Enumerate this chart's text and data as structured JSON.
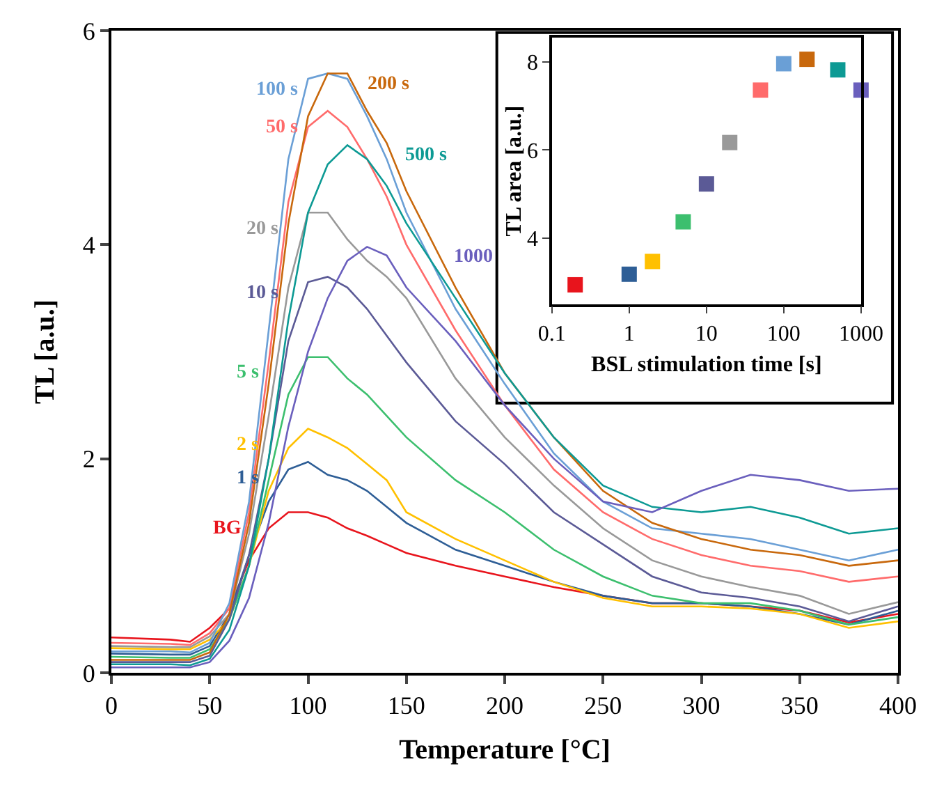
{
  "chart_data": [
    {
      "type": "line",
      "xlabel": "Temperature [°C]",
      "ylabel": "TL [a.u.]",
      "xlim": [
        0,
        400
      ],
      "ylim": [
        0,
        6
      ],
      "xticks": [
        0,
        50,
        100,
        150,
        200,
        250,
        300,
        350,
        400
      ],
      "yticks": [
        0,
        2,
        4,
        6
      ],
      "grid": false,
      "marker": "none",
      "line_style": "solid",
      "x": [
        0,
        30,
        40,
        50,
        60,
        70,
        80,
        90,
        100,
        110,
        120,
        130,
        140,
        150,
        175,
        200,
        225,
        250,
        275,
        300,
        325,
        350,
        375,
        400
      ],
      "series": [
        {
          "name": "BG",
          "color": "#e8141c",
          "values": [
            0.33,
            0.31,
            0.29,
            0.42,
            0.6,
            1.05,
            1.35,
            1.5,
            1.5,
            1.45,
            1.35,
            1.28,
            1.2,
            1.12,
            1.0,
            0.9,
            0.8,
            0.72,
            0.65,
            0.65,
            0.62,
            0.58,
            0.47,
            0.55
          ]
        },
        {
          "name": "1 s",
          "color": "#2e5e96",
          "values": [
            0.18,
            0.17,
            0.17,
            0.25,
            0.55,
            1.1,
            1.6,
            1.9,
            1.97,
            1.85,
            1.8,
            1.7,
            1.55,
            1.4,
            1.15,
            1.0,
            0.85,
            0.72,
            0.65,
            0.65,
            0.62,
            0.55,
            0.45,
            0.58
          ]
        },
        {
          "name": "2 s",
          "color": "#ffc000",
          "values": [
            0.23,
            0.22,
            0.22,
            0.31,
            0.5,
            1.0,
            1.7,
            2.1,
            2.28,
            2.2,
            2.1,
            1.95,
            1.8,
            1.5,
            1.25,
            1.05,
            0.85,
            0.7,
            0.62,
            0.62,
            0.6,
            0.55,
            0.42,
            0.48
          ]
        },
        {
          "name": "5 s",
          "color": "#3cbf6e",
          "values": [
            0.15,
            0.14,
            0.14,
            0.22,
            0.5,
            1.0,
            1.8,
            2.6,
            2.95,
            2.95,
            2.75,
            2.6,
            2.4,
            2.2,
            1.8,
            1.5,
            1.15,
            0.9,
            0.72,
            0.65,
            0.65,
            0.58,
            0.45,
            0.52
          ]
        },
        {
          "name": "10 s",
          "color": "#5b5a96",
          "values": [
            0.1,
            0.1,
            0.1,
            0.16,
            0.5,
            1.1,
            2.0,
            3.1,
            3.65,
            3.7,
            3.6,
            3.4,
            3.15,
            2.9,
            2.35,
            1.95,
            1.5,
            1.2,
            0.9,
            0.75,
            0.7,
            0.62,
            0.48,
            0.62
          ]
        },
        {
          "name": "20 s",
          "color": "#999999",
          "values": [
            0.25,
            0.24,
            0.24,
            0.34,
            0.55,
            1.3,
            2.4,
            3.6,
            4.3,
            4.3,
            4.05,
            3.85,
            3.7,
            3.5,
            2.75,
            2.2,
            1.75,
            1.35,
            1.05,
            0.9,
            0.8,
            0.72,
            0.55,
            0.66
          ]
        },
        {
          "name": "50 s",
          "color": "#ff6b6b",
          "values": [
            0.28,
            0.27,
            0.26,
            0.37,
            0.6,
            1.5,
            2.9,
            4.4,
            5.1,
            5.25,
            5.1,
            4.8,
            4.45,
            4.0,
            3.2,
            2.5,
            1.9,
            1.5,
            1.25,
            1.1,
            1.0,
            0.95,
            0.85,
            0.9
          ]
        },
        {
          "name": "100 s",
          "color": "#6a9fd6",
          "values": [
            0.2,
            0.2,
            0.19,
            0.28,
            0.65,
            1.6,
            3.2,
            4.8,
            5.55,
            5.6,
            5.55,
            5.2,
            4.8,
            4.3,
            3.4,
            2.7,
            2.05,
            1.6,
            1.35,
            1.3,
            1.25,
            1.15,
            1.05,
            1.15
          ]
        },
        {
          "name": "200 s",
          "color": "#c8680c",
          "values": [
            0.12,
            0.12,
            0.12,
            0.19,
            0.55,
            1.4,
            2.7,
            4.2,
            5.2,
            5.6,
            5.6,
            5.25,
            4.95,
            4.5,
            3.6,
            2.8,
            2.2,
            1.7,
            1.4,
            1.25,
            1.15,
            1.1,
            1.0,
            1.05
          ]
        },
        {
          "name": "500 s",
          "color": "#0d9a94",
          "values": [
            0.08,
            0.08,
            0.07,
            0.13,
            0.4,
            1.0,
            2.0,
            3.3,
            4.3,
            4.75,
            4.93,
            4.8,
            4.55,
            4.2,
            3.5,
            2.8,
            2.2,
            1.75,
            1.55,
            1.5,
            1.55,
            1.45,
            1.3,
            1.35
          ]
        },
        {
          "name": "1000",
          "color": "#6a5fbd",
          "values": [
            0.05,
            0.05,
            0.05,
            0.1,
            0.3,
            0.7,
            1.4,
            2.3,
            3.0,
            3.5,
            3.85,
            3.98,
            3.9,
            3.6,
            3.1,
            2.5,
            2.0,
            1.6,
            1.5,
            1.7,
            1.85,
            1.8,
            1.7,
            1.72
          ]
        }
      ]
    },
    {
      "type": "scatter",
      "xlabel": "BSL stimulation time [s]",
      "ylabel": "TL area [a.u.]",
      "log": "x",
      "xlim": [
        0.1,
        1000
      ],
      "ylim": [
        2.5,
        8.55
      ],
      "xticks": [
        0.1,
        1,
        10,
        100,
        1000
      ],
      "yticks": [
        4,
        6,
        8
      ],
      "grid": false,
      "marker": "square",
      "x": [
        0.2,
        1,
        2,
        5,
        10,
        20,
        50,
        100,
        200,
        500,
        1000
      ],
      "values": [
        2.94,
        3.18,
        3.47,
        4.37,
        5.23,
        6.17,
        7.36,
        7.96,
        8.06,
        7.82,
        7.36
      ],
      "colors": [
        "#e8141c",
        "#2e5e96",
        "#ffc000",
        "#3cbf6e",
        "#5b5a96",
        "#999999",
        "#ff6b6b",
        "#6a9fd6",
        "#c8680c",
        "#0d9a94",
        "#6a5fbd"
      ]
    }
  ]
}
